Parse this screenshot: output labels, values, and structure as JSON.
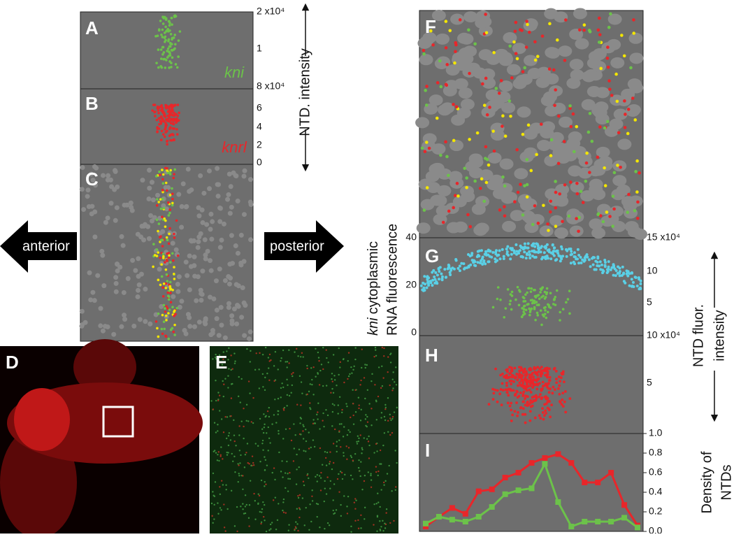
{
  "panel_labels": [
    "A",
    "B",
    "C",
    "D",
    "E",
    "F",
    "G",
    "H",
    "I"
  ],
  "gene_labels": {
    "kni": "kni",
    "knrl": "knrl"
  },
  "arrows": {
    "anterior": "anterior",
    "posterior": "posterior"
  },
  "axis_labels": {
    "ntd_intensity": "NTD. intensity",
    "g_gene": "kni",
    "g_line1": "cytoplasmic",
    "g_line2": "RNA fluorescence",
    "ntd_fluor_1": "NTD fluor.",
    "ntd_fluor_2": "intensity",
    "density_1": "Density of",
    "density_2": "NTDs"
  },
  "axis_ticks": {
    "A": [
      "2 x10⁴",
      "1"
    ],
    "B": [
      "8 x10⁴",
      "6",
      "4",
      "2",
      "0"
    ],
    "G_left": [
      "40",
      "20",
      "0"
    ],
    "G_right": [
      "15 x10⁴",
      "10",
      "5"
    ],
    "H_right": [
      "10 x10⁴",
      "5"
    ]
  },
  "chart_data": {
    "type": "line",
    "categories": [
      null,
      null,
      null,
      null,
      null,
      null,
      null,
      null,
      null,
      null,
      null,
      null,
      null,
      null,
      null,
      null,
      null
    ],
    "series": [
      {
        "color": "#e8262a",
        "values": [
          0.05,
          0.15,
          0.24,
          0.18,
          0.41,
          0.43,
          0.55,
          0.6,
          0.7,
          0.75,
          0.79,
          0.7,
          0.5,
          0.5,
          0.6,
          0.27,
          0.06
        ]
      },
      {
        "color": "#6cc24a",
        "values": [
          0.08,
          0.15,
          0.12,
          0.1,
          0.15,
          0.25,
          0.38,
          0.42,
          0.44,
          0.69,
          0.3,
          0.05,
          0.1,
          0.1,
          0.1,
          0.14,
          0.04
        ]
      }
    ],
    "ylim": [
      0,
      1.0
    ],
    "yticks": [
      {
        "value": 0,
        "label": "0.0"
      },
      0.2,
      0.4,
      0.6,
      0.8,
      {
        "value": 1.0,
        "label": "1.0"
      }
    ]
  }
}
